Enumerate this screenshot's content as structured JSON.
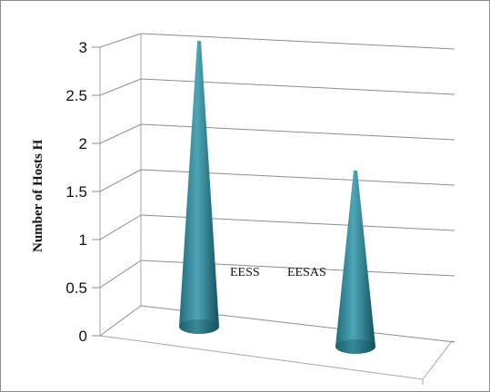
{
  "chart_data": {
    "type": "bar",
    "style": "3d-cone",
    "categories": [
      "EESS",
      "EESAS"
    ],
    "values": [
      3.0,
      1.85
    ],
    "ylabel": "Number of  Hosts H",
    "xlabel": "",
    "ylim": [
      0,
      3
    ],
    "yticks": [
      "0",
      "0.5",
      "1",
      "1.5",
      "2",
      "2.5",
      "3"
    ],
    "grid": true,
    "legend": "none",
    "colors": {
      "cone_light": "#4ea6b6",
      "cone_mid": "#2d8a9b",
      "cone_dark": "#14505e",
      "grid": "#8c8c8c",
      "wall": "#a6a6a6"
    }
  }
}
